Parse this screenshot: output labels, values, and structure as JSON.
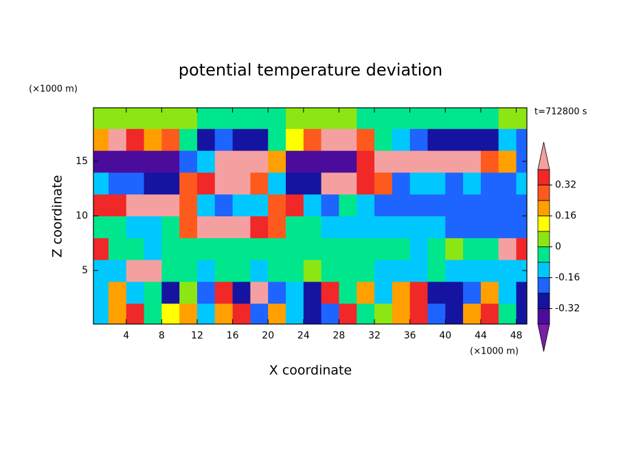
{
  "chart_data": {
    "type": "contour",
    "title": "potential temperature deviation",
    "xlabel": "X coordinate",
    "ylabel": "Z coordinate",
    "x_unit": "(×1000 m)",
    "y_unit": "(×1000 m)",
    "annotation": "t=712800 s",
    "x": [
      1,
      3,
      5,
      7,
      9,
      11,
      13,
      15,
      17,
      19,
      21,
      23,
      25,
      27,
      29,
      31,
      33,
      35,
      37,
      39,
      41,
      43,
      45,
      47,
      49
    ],
    "y": [
      1,
      3,
      5,
      7,
      9,
      11,
      13,
      15,
      17,
      19
    ],
    "z": [
      [
        -0.12,
        0.2,
        0.36,
        -0.04,
        0.12,
        0.2,
        -0.12,
        0.2,
        0.36,
        -0.2,
        0.2,
        -0.12,
        -0.28,
        -0.2,
        0.36,
        -0.04,
        0.04,
        0.2,
        0.36,
        -0.2,
        -0.28,
        0.2,
        0.36,
        -0.04,
        -0.28
      ],
      [
        -0.12,
        0.2,
        -0.12,
        -0.04,
        -0.28,
        0.04,
        -0.2,
        0.36,
        -0.28,
        0.45,
        -0.2,
        -0.12,
        -0.28,
        0.36,
        -0.04,
        0.2,
        -0.12,
        0.2,
        0.36,
        -0.28,
        -0.28,
        -0.2,
        0.2,
        -0.12,
        -0.28
      ],
      [
        -0.12,
        -0.12,
        0.45,
        0.45,
        -0.04,
        -0.04,
        -0.12,
        -0.04,
        -0.04,
        -0.12,
        -0.04,
        -0.04,
        0.04,
        -0.04,
        -0.04,
        -0.04,
        -0.12,
        -0.12,
        -0.12,
        -0.04,
        -0.12,
        -0.12,
        -0.12,
        -0.12,
        -0.12
      ],
      [
        0.36,
        -0.04,
        -0.04,
        -0.12,
        -0.04,
        -0.04,
        -0.04,
        -0.04,
        -0.04,
        -0.04,
        -0.04,
        -0.04,
        -0.04,
        -0.04,
        -0.04,
        -0.04,
        -0.04,
        -0.04,
        -0.12,
        -0.04,
        0.04,
        -0.04,
        -0.04,
        0.45,
        0.36
      ],
      [
        -0.04,
        -0.04,
        -0.12,
        -0.12,
        -0.04,
        0.28,
        0.45,
        0.45,
        0.45,
        0.36,
        0.28,
        -0.04,
        -0.04,
        -0.12,
        -0.12,
        -0.12,
        -0.12,
        -0.12,
        -0.12,
        -0.12,
        -0.2,
        -0.2,
        -0.2,
        -0.2,
        -0.2
      ],
      [
        0.36,
        0.36,
        0.45,
        0.45,
        0.45,
        0.28,
        -0.12,
        -0.2,
        -0.12,
        -0.12,
        0.28,
        0.36,
        -0.12,
        -0.2,
        -0.04,
        -0.12,
        -0.2,
        -0.2,
        -0.2,
        -0.2,
        -0.2,
        -0.2,
        -0.2,
        -0.2,
        -0.2
      ],
      [
        -0.12,
        -0.2,
        -0.2,
        -0.28,
        -0.28,
        0.28,
        0.36,
        0.45,
        0.45,
        0.28,
        -0.12,
        -0.28,
        -0.28,
        0.45,
        0.45,
        0.36,
        0.28,
        -0.2,
        -0.12,
        -0.12,
        -0.2,
        -0.12,
        -0.2,
        -0.2,
        -0.12
      ],
      [
        -0.36,
        -0.36,
        -0.36,
        -0.36,
        -0.36,
        -0.2,
        -0.12,
        0.45,
        0.45,
        0.45,
        0.2,
        -0.36,
        -0.36,
        -0.36,
        -0.36,
        0.36,
        0.45,
        0.45,
        0.45,
        0.45,
        0.45,
        0.45,
        0.28,
        0.2,
        -0.2
      ],
      [
        0.2,
        0.45,
        0.36,
        0.2,
        0.28,
        -0.04,
        -0.28,
        -0.2,
        -0.28,
        -0.28,
        -0.04,
        0.12,
        0.28,
        0.45,
        0.45,
        0.28,
        -0.04,
        -0.12,
        -0.2,
        -0.28,
        -0.28,
        -0.28,
        -0.28,
        -0.12,
        -0.2
      ],
      [
        0.04,
        0.04,
        0.04,
        0.04,
        0.04,
        0.04,
        -0.04,
        -0.04,
        -0.04,
        -0.04,
        -0.04,
        0.04,
        0.04,
        0.04,
        0.04,
        -0.04,
        -0.04,
        -0.04,
        -0.04,
        -0.04,
        -0.04,
        -0.04,
        -0.04,
        0.04,
        0.04
      ]
    ],
    "xlim": [
      0.3,
      49.2
    ],
    "ylim": [
      0.1,
      19.9
    ],
    "xticks": [
      4,
      8,
      12,
      16,
      20,
      24,
      28,
      32,
      36,
      40,
      44,
      48
    ],
    "yticks": [
      5,
      10,
      15
    ],
    "levels": [
      -0.4,
      -0.32,
      -0.24,
      -0.16,
      -0.08,
      0,
      0.08,
      0.16,
      0.24,
      0.32,
      0.4
    ],
    "colors": [
      "#7a1fa8",
      "#4b0c9c",
      "#1414a0",
      "#1e64ff",
      "#00c8ff",
      "#00e68c",
      "#8ce614",
      "#ffff00",
      "#ffa000",
      "#ff5a1e",
      "#f02828",
      "#f5a0a0"
    ],
    "colorbar_ticks": [
      0.32,
      0.16,
      0,
      -0.16,
      -0.32
    ]
  }
}
